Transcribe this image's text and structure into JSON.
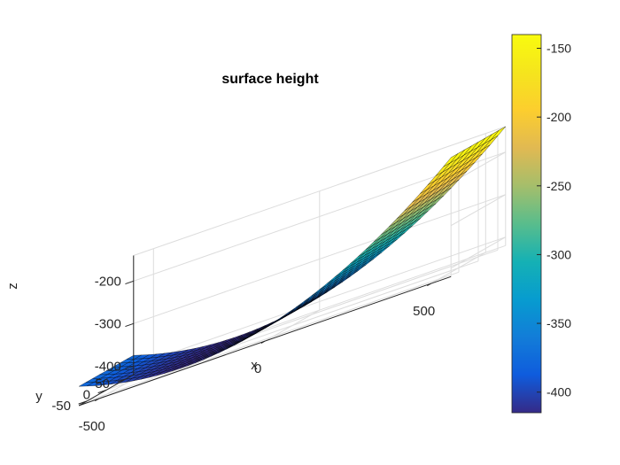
{
  "chart_data": {
    "type": "surface",
    "title": "surface height",
    "xlabel": "x",
    "ylabel": "y",
    "zlabel": "z",
    "xlim": [
      -560,
      560
    ],
    "ylim": [
      -70,
      70
    ],
    "zlim": [
      -420,
      -140
    ],
    "x_ticks": [
      -500,
      0,
      500
    ],
    "y_ticks": [
      -50,
      0,
      50
    ],
    "z_ticks": [
      -400,
      -300,
      -200
    ],
    "x_tick_labels": [
      "-500",
      "0",
      "500"
    ],
    "y_tick_labels": [
      "-50",
      "0",
      "50"
    ],
    "z_tick_labels": [
      "-400",
      "-300",
      "-200"
    ],
    "surface": {
      "description_formula": "z = z_min + curvature * (x - x_vertex)^2",
      "x_range": [
        -560,
        560
      ],
      "y_range": [
        -70,
        70
      ],
      "x_vertex": -250,
      "z_min": -415,
      "z_at_x_min": -325,
      "z_at_x_max": -140
    },
    "colorbar": {
      "colormap": "parula",
      "limits": [
        -415,
        -140
      ],
      "ticks": [
        -150,
        -200,
        -250,
        -300,
        -350,
        -400
      ],
      "tick_labels": [
        "-150",
        "-200",
        "-250",
        "-300",
        "-350",
        "-400"
      ]
    },
    "grid": true,
    "edge_color": "#000000"
  }
}
